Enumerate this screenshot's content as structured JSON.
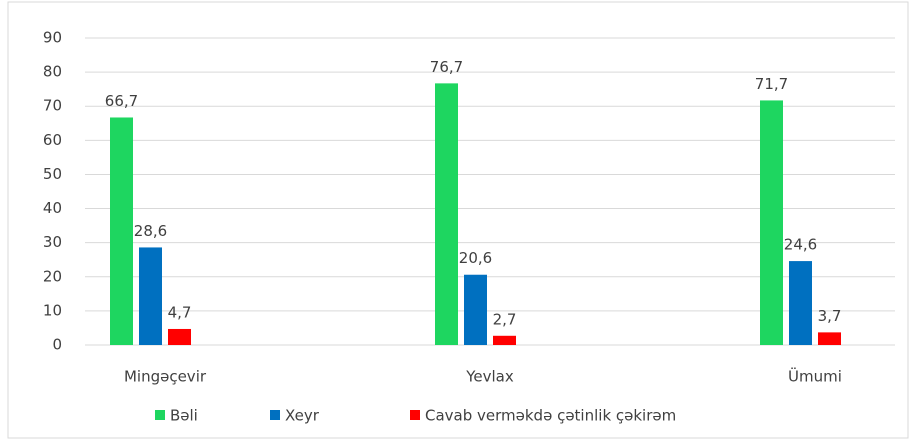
{
  "chart_data": {
    "type": "bar",
    "categories": [
      "Mingəçevir",
      "Yevlax",
      "Ümumi"
    ],
    "series": [
      {
        "name": "Bəli",
        "color": "#1ed660",
        "values": [
          66.7,
          76.7,
          71.7
        ],
        "value_labels": [
          "66,7",
          "76,7",
          "71,7"
        ]
      },
      {
        "name": "Xeyr",
        "color": "#0070c0",
        "values": [
          28.6,
          20.6,
          24.6
        ],
        "value_labels": [
          "28,6",
          "20,6",
          "24,6"
        ]
      },
      {
        "name": "Cavab verməkdə çətinlik çəkirəm",
        "color": "#ff0000",
        "values": [
          4.7,
          2.7,
          3.7
        ],
        "value_labels": [
          "4,7",
          "2,7",
          "3,7"
        ]
      }
    ],
    "ylim": [
      0,
      90
    ],
    "yticks": [
      0,
      10,
      20,
      30,
      40,
      50,
      60,
      70,
      80,
      90
    ],
    "grid": true,
    "legend": "bottom"
  }
}
